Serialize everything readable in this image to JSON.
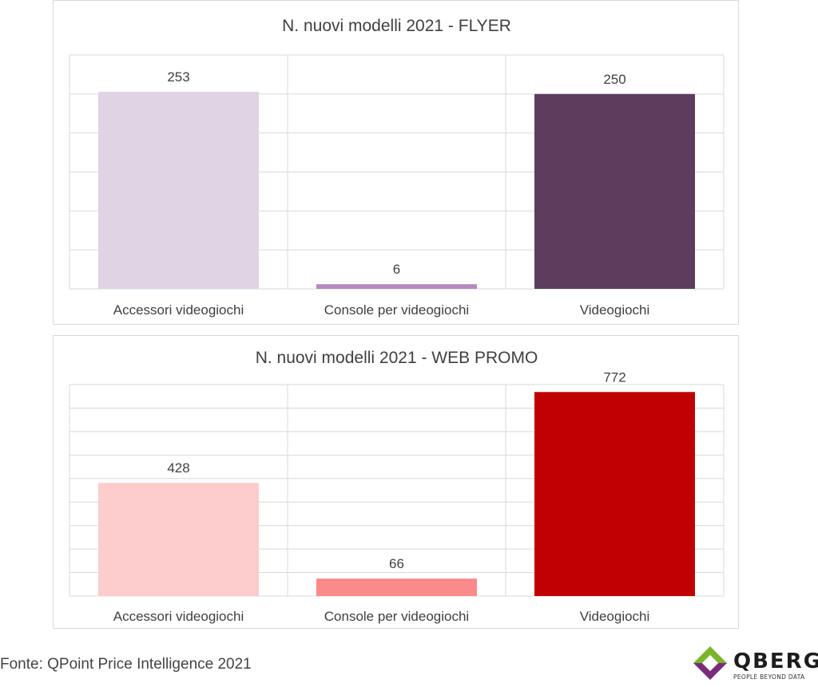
{
  "chart_data": [
    {
      "type": "bar",
      "title": "N. nuovi modelli 2021 - FLYER",
      "categories": [
        "Accessori videogiochi",
        "Console per videogiochi",
        "Videogiochi"
      ],
      "values": [
        253,
        6,
        250
      ],
      "bar_colors": [
        "#e0d4e4",
        "#b48cbe",
        "#5c3d5e"
      ],
      "ylim": [
        0,
        300
      ],
      "grid": true,
      "legend": "none"
    },
    {
      "type": "bar",
      "title": "N. nuovi modelli 2021 - WEB PROMO",
      "categories": [
        "Accessori videogiochi",
        "Console per videogiochi",
        "Videogiochi"
      ],
      "values": [
        428,
        66,
        772
      ],
      "bar_colors": [
        "#fdcccc",
        "#fb8a8a",
        "#c00000"
      ],
      "ylim": [
        0,
        800
      ],
      "grid": true,
      "legend": "none"
    }
  ],
  "footer": {
    "source": "Fonte: QPoint Price Intelligence 2021"
  },
  "logo": {
    "name": "QBERG",
    "tagline": "PEOPLE BEYOND DATA",
    "colors": [
      "#7ab52c",
      "#7a2b7a"
    ]
  }
}
